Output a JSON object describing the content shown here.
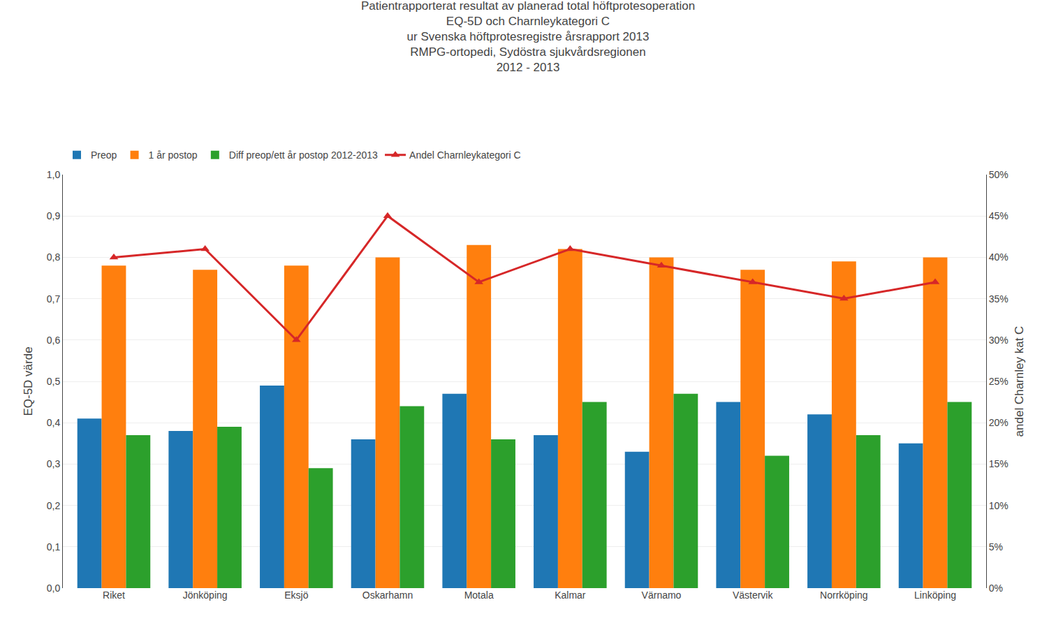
{
  "chart_data": {
    "type": "bar",
    "title": "Patientrapporterat resultat av planerad total höftprotesoperation\nEQ-5D och Charnleykategori C\nur Svenska höftprotesregistre årsrapport 2013\nRMPG-ortopedi, Sydöstra sjukvårdsregionen\n2012 - 2013",
    "categories": [
      "Riket",
      "Jönköping",
      "Eksjö",
      "Oskarhamn",
      "Motala",
      "Kalmar",
      "Värnamo",
      "Västervik",
      "Norrköping",
      "Linköping"
    ],
    "series": [
      {
        "name": "Preop",
        "values": [
          0.41,
          0.38,
          0.49,
          0.36,
          0.47,
          0.37,
          0.33,
          0.45,
          0.42,
          0.35
        ]
      },
      {
        "name": "1 år postop",
        "values": [
          0.78,
          0.77,
          0.78,
          0.8,
          0.83,
          0.82,
          0.8,
          0.77,
          0.79,
          0.8
        ]
      },
      {
        "name": "Diff preop/ett år postop 2012-2013",
        "values": [
          0.37,
          0.39,
          0.29,
          0.44,
          0.36,
          0.45,
          0.47,
          0.32,
          0.37,
          0.45
        ]
      },
      {
        "name": "Andel Charnleykategori C",
        "type": "line",
        "marker": "triangle-up",
        "axis": "y2",
        "values": [
          0.4,
          0.41,
          0.3,
          0.45,
          0.37,
          0.41,
          0.39,
          0.37,
          0.35,
          0.37
        ]
      }
    ],
    "ylabel": "EQ-5D värde",
    "y2label": "andel Charnley kat C",
    "ylim": [
      0.0,
      1.0
    ],
    "yticks": [
      {
        "value": 0.0,
        "label": "0,0"
      },
      {
        "value": 0.1,
        "label": "0,1"
      },
      {
        "value": 0.2,
        "label": "0,2"
      },
      {
        "value": 0.3,
        "label": "0,3"
      },
      {
        "value": 0.4,
        "label": "0,4"
      },
      {
        "value": 0.5,
        "label": "0,5"
      },
      {
        "value": 0.6,
        "label": "0,6"
      },
      {
        "value": 0.7,
        "label": "0,7"
      },
      {
        "value": 0.8,
        "label": "0,8"
      },
      {
        "value": 0.9,
        "label": "0,9"
      },
      {
        "value": 1.0,
        "label": "1,0"
      }
    ],
    "y2lim": [
      0.0,
      0.5
    ],
    "y2ticks": [
      {
        "value": 0.0,
        "label": "0%"
      },
      {
        "value": 0.05,
        "label": "5%"
      },
      {
        "value": 0.1,
        "label": "10%"
      },
      {
        "value": 0.15,
        "label": "15%"
      },
      {
        "value": 0.2,
        "label": "20%"
      },
      {
        "value": 0.25,
        "label": "25%"
      },
      {
        "value": 0.3,
        "label": "30%"
      },
      {
        "value": 0.35,
        "label": "35%"
      },
      {
        "value": 0.4,
        "label": "40%"
      },
      {
        "value": 0.45,
        "label": "45%"
      },
      {
        "value": 0.5,
        "label": "50%"
      }
    ],
    "grid": true,
    "legend": "upper left"
  }
}
